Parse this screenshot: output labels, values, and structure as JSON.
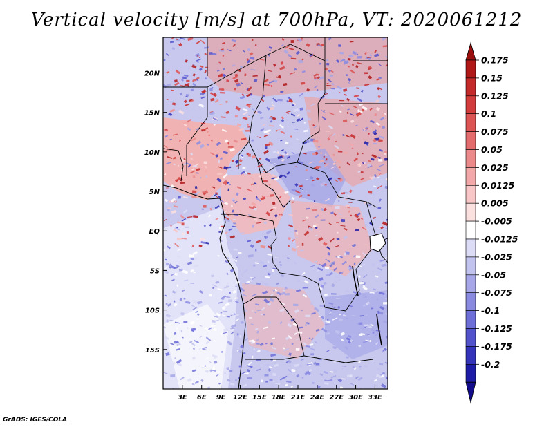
{
  "title": "Vertical velocity [m/s] at 700hPa, VT: 2020061212",
  "credit": "GrADS: IGES/COLA",
  "map": {
    "variable": "Vertical velocity",
    "units": "m/s",
    "level": "700hPa",
    "valid_time": "2020061212",
    "lon_range": [
      0,
      35
    ],
    "lat_range": [
      -20,
      24.5
    ],
    "lon_ticks": [
      {
        "value": 3,
        "label": "3E"
      },
      {
        "value": 6,
        "label": "6E"
      },
      {
        "value": 9,
        "label": "9E"
      },
      {
        "value": 12,
        "label": "12E"
      },
      {
        "value": 15,
        "label": "15E"
      },
      {
        "value": 18,
        "label": "18E"
      },
      {
        "value": 21,
        "label": "21E"
      },
      {
        "value": 24,
        "label": "24E"
      },
      {
        "value": 27,
        "label": "27E"
      },
      {
        "value": 30,
        "label": "30E"
      },
      {
        "value": 33,
        "label": "33E"
      }
    ],
    "lat_ticks": [
      {
        "value": 20,
        "label": "20N"
      },
      {
        "value": 15,
        "label": "15N"
      },
      {
        "value": 10,
        "label": "10N"
      },
      {
        "value": 5,
        "label": "5N"
      },
      {
        "value": 0,
        "label": "EQ"
      },
      {
        "value": -5,
        "label": "5S"
      },
      {
        "value": -10,
        "label": "10S"
      },
      {
        "value": -15,
        "label": "15S"
      }
    ]
  },
  "colorbar": {
    "levels": [
      {
        "label": "0.175",
        "color": "#b01818"
      },
      {
        "label": "0.15",
        "color": "#c42a2a"
      },
      {
        "label": "0.125",
        "color": "#d23c3c"
      },
      {
        "label": "0.1",
        "color": "#dc5454"
      },
      {
        "label": "0.075",
        "color": "#e46c6c"
      },
      {
        "label": "0.05",
        "color": "#ec8a8a"
      },
      {
        "label": "0.025",
        "color": "#f2a8a8"
      },
      {
        "label": "0.0125",
        "color": "#f8c6c6"
      },
      {
        "label": "0.005",
        "color": "#fbe0e0"
      },
      {
        "label": "-0.005",
        "color": "#ffffff"
      },
      {
        "label": "-0.0125",
        "color": "#dcdcf6"
      },
      {
        "label": "-0.025",
        "color": "#c2c2ef"
      },
      {
        "label": "-0.05",
        "color": "#a6a6e8"
      },
      {
        "label": "-0.075",
        "color": "#8a8ae0"
      },
      {
        "label": "-0.1",
        "color": "#6e6ed8"
      },
      {
        "label": "-0.125",
        "color": "#5252cc"
      },
      {
        "label": "-0.175",
        "color": "#3434bb"
      },
      {
        "label": "-0.2",
        "color": "#1c1ca6"
      }
    ],
    "top_arrow_color": "#9a0e0e",
    "bottom_arrow_color": "#120c8c"
  }
}
